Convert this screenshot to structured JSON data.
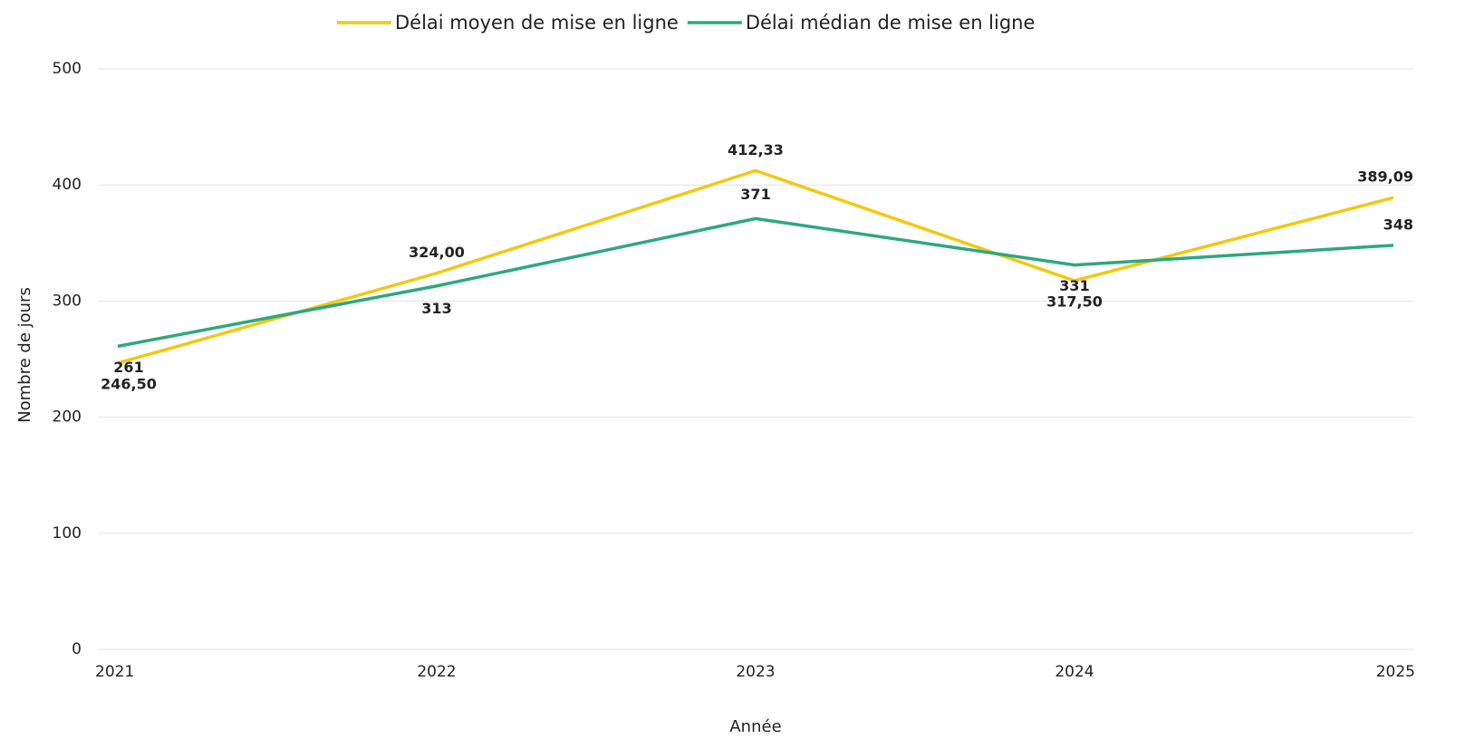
{
  "chart_data": {
    "type": "line",
    "x_label": "Année",
    "y_label": "Nombre de jours",
    "categories": [
      "2021",
      "2022",
      "2023",
      "2024",
      "2025"
    ],
    "series": [
      {
        "name": "Délai moyen de mise en ligne",
        "color": "#f2c811",
        "values": [
          246.5,
          324,
          412.33,
          317.5,
          389.09
        ],
        "value_labels": [
          "246,50",
          "324,00",
          "412,33",
          "317,50",
          "389,09"
        ]
      },
      {
        "name": "Délai médian de mise en ligne",
        "color": "#2ea87e",
        "values": [
          261,
          313,
          371,
          331,
          348
        ]
      }
    ],
    "ylim": [
      0,
      500
    ],
    "yticks": [
      0,
      100,
      200,
      300,
      400,
      500
    ],
    "grid": true,
    "legend": "top"
  }
}
